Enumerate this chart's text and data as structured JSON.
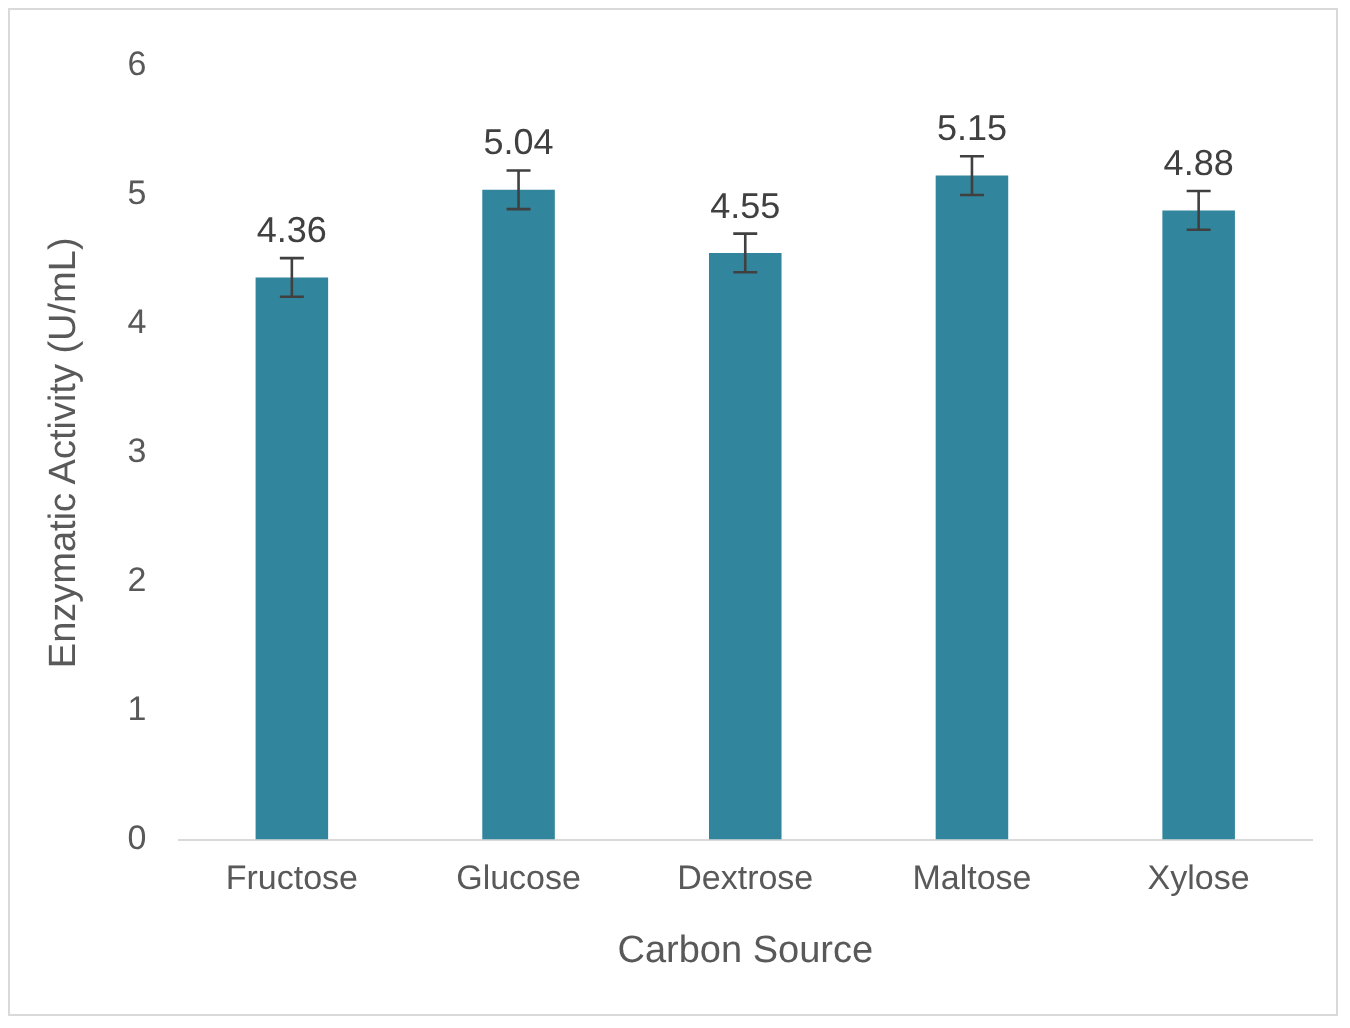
{
  "chart_data": {
    "type": "bar",
    "xlabel": "Carbon Source",
    "ylabel": "Enzymatic Activity (U/mL)",
    "categories": [
      "Fructose",
      "Glucose",
      "Dextrose",
      "Maltose",
      "Xylose"
    ],
    "values": [
      4.36,
      5.04,
      4.55,
      5.15,
      4.88
    ],
    "errors": [
      0.15,
      0.15,
      0.15,
      0.15,
      0.15
    ],
    "color": "#31859c",
    "ylim": [
      0,
      6
    ],
    "yticks": [
      0,
      1,
      2,
      3,
      4,
      5,
      6
    ],
    "grid": false,
    "legend": false,
    "data_labels": true
  }
}
